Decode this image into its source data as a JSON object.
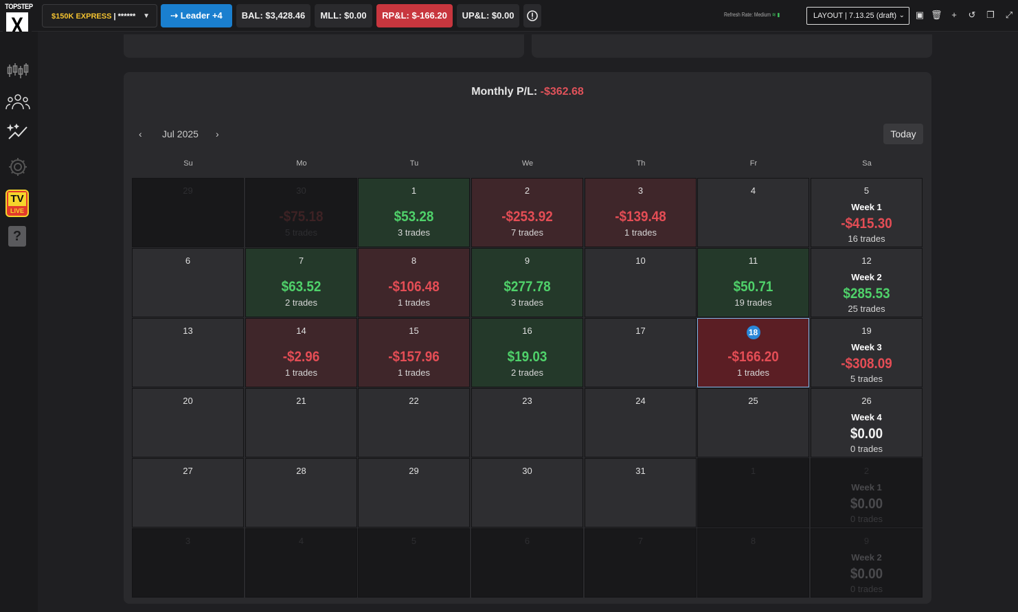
{
  "brand": {
    "top": "TOPSTEP",
    "mark": "X"
  },
  "topbar": {
    "account_name": "$150K EXPRESS",
    "account_masked": "| ******",
    "leader_label": "Leader +4",
    "bal": "BAL: $3,428.46",
    "mll": "MLL: $0.00",
    "rpl": "RP&L: $-166.20",
    "upl": "UP&L: $0.00",
    "info_icon": "!",
    "refresh_rate": "Refresh Rate: Medium",
    "layout_select": "LAYOUT | 7.13.25 (draft)"
  },
  "calendar": {
    "monthly_label": "Monthly P/L:",
    "monthly_value": "-$362.68",
    "month": "Jul 2025",
    "today_label": "Today",
    "weekdays": [
      "Su",
      "Mo",
      "Tu",
      "We",
      "Th",
      "Fr",
      "Sa"
    ],
    "rows": [
      {
        "cells": [
          {
            "day": "29",
            "type": "out"
          },
          {
            "day": "30",
            "type": "out",
            "amount": "-$75.18",
            "trades": "5 trades",
            "tone": "r"
          },
          {
            "day": "1",
            "type": "pos",
            "amount": "$53.28",
            "trades": "3 trades",
            "tone": "g"
          },
          {
            "day": "2",
            "type": "neg",
            "amount": "-$253.92",
            "trades": "7 trades",
            "tone": "r"
          },
          {
            "day": "3",
            "type": "neg",
            "amount": "-$139.48",
            "trades": "1 trades",
            "tone": "r"
          },
          {
            "day": "4",
            "type": "plain"
          }
        ],
        "week": {
          "day": "5",
          "title": "Week 1",
          "amount": "-$415.30",
          "trades": "16 trades",
          "tone": "r"
        }
      },
      {
        "cells": [
          {
            "day": "6",
            "type": "plain"
          },
          {
            "day": "7",
            "type": "pos",
            "amount": "$63.52",
            "trades": "2 trades",
            "tone": "g"
          },
          {
            "day": "8",
            "type": "neg",
            "amount": "-$106.48",
            "trades": "1 trades",
            "tone": "r"
          },
          {
            "day": "9",
            "type": "pos",
            "amount": "$277.78",
            "trades": "3 trades",
            "tone": "g"
          },
          {
            "day": "10",
            "type": "plain"
          },
          {
            "day": "11",
            "type": "pos",
            "amount": "$50.71",
            "trades": "19 trades",
            "tone": "g"
          }
        ],
        "week": {
          "day": "12",
          "title": "Week 2",
          "amount": "$285.53",
          "trades": "25 trades",
          "tone": "g"
        }
      },
      {
        "cells": [
          {
            "day": "13",
            "type": "plain"
          },
          {
            "day": "14",
            "type": "neg",
            "amount": "-$2.96",
            "trades": "1 trades",
            "tone": "r"
          },
          {
            "day": "15",
            "type": "neg",
            "amount": "-$157.96",
            "trades": "1 trades",
            "tone": "r"
          },
          {
            "day": "16",
            "type": "pos",
            "amount": "$19.03",
            "trades": "2 trades",
            "tone": "g"
          },
          {
            "day": "17",
            "type": "plain"
          },
          {
            "day": "18",
            "type": "sel",
            "amount": "-$166.20",
            "trades": "1 trades",
            "tone": "r"
          }
        ],
        "week": {
          "day": "19",
          "title": "Week 3",
          "amount": "-$308.09",
          "trades": "5 trades",
          "tone": "r"
        }
      },
      {
        "cells": [
          {
            "day": "20",
            "type": "plain"
          },
          {
            "day": "21",
            "type": "plain"
          },
          {
            "day": "22",
            "type": "plain"
          },
          {
            "day": "23",
            "type": "plain"
          },
          {
            "day": "24",
            "type": "plain"
          },
          {
            "day": "25",
            "type": "plain"
          }
        ],
        "week": {
          "day": "26",
          "title": "Week 4",
          "amount": "$0.00",
          "trades": "0 trades",
          "tone": "w"
        }
      },
      {
        "cells": [
          {
            "day": "27",
            "type": "plain"
          },
          {
            "day": "28",
            "type": "plain"
          },
          {
            "day": "29",
            "type": "plain"
          },
          {
            "day": "30",
            "type": "plain"
          },
          {
            "day": "31",
            "type": "plain"
          },
          {
            "day": "1",
            "type": "out"
          }
        ],
        "week": {
          "day": "2",
          "title": "Week 1",
          "amount": "$0.00",
          "trades": "0 trades",
          "tone": "w",
          "out": true
        }
      },
      {
        "cells": [
          {
            "day": "3",
            "type": "out"
          },
          {
            "day": "4",
            "type": "out"
          },
          {
            "day": "5",
            "type": "out"
          },
          {
            "day": "6",
            "type": "out"
          },
          {
            "day": "7",
            "type": "out"
          },
          {
            "day": "8",
            "type": "out"
          }
        ],
        "week": {
          "day": "9",
          "title": "Week 2",
          "amount": "$0.00",
          "trades": "0 trades",
          "tone": "w",
          "out": true
        }
      }
    ]
  }
}
